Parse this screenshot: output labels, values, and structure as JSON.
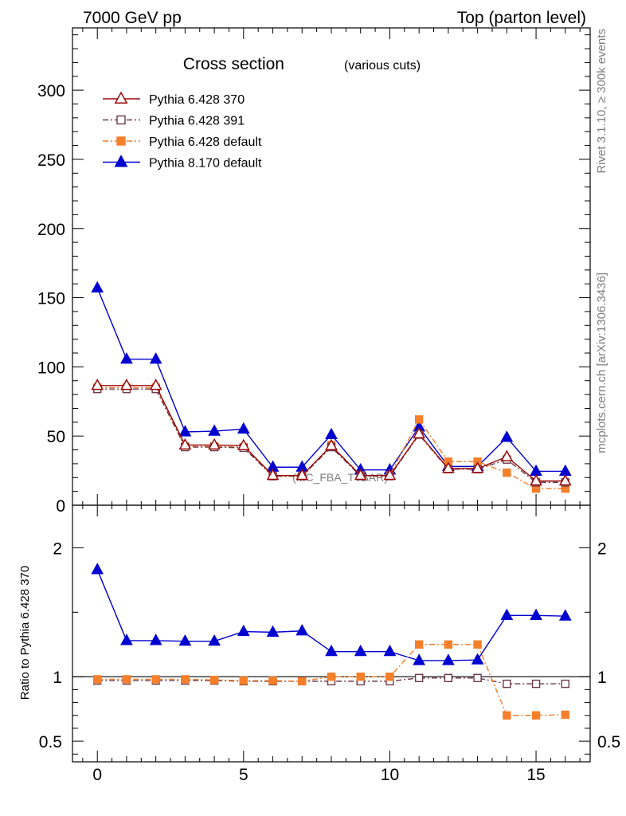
{
  "header": {
    "left": "7000 GeV pp",
    "right": "Top (parton level)"
  },
  "side": {
    "rivet": "Rivet 3.1.10, ≥ 300k events",
    "mcplots": "mcplots.cern.ch [arXiv:1306.3436]"
  },
  "chart_data": [
    {
      "panel": "main",
      "type": "line",
      "title": "Cross section",
      "subtitle": "(various cuts)",
      "watermark": "(MC_FBA_TTBAR)",
      "xlim": [
        -0.85,
        16.85
      ],
      "ylim": [
        0,
        345
      ],
      "yticks": [
        0,
        50,
        100,
        150,
        200,
        250,
        300
      ],
      "yticklabels": [
        "0",
        "50",
        "100",
        "150",
        "200",
        "250",
        "300"
      ],
      "legend_position": "top-left",
      "x": [
        0,
        1,
        2,
        3,
        4,
        5,
        6,
        7,
        8,
        9,
        10,
        11,
        12,
        13,
        14,
        15,
        16
      ],
      "series": [
        {
          "name": "Pythia 6.428 370",
          "color": "#9b0a0a",
          "marker": "open-triangle",
          "line": "solid",
          "values": [
            86.5,
            86.5,
            86.5,
            43.5,
            43.5,
            43,
            21.5,
            21.5,
            43,
            21.5,
            21.5,
            51.5,
            26.5,
            26.5,
            35,
            17.5,
            17.5
          ]
        },
        {
          "name": "Pythia 6.428 391",
          "color": "#6b3a4d",
          "marker": "open-square",
          "line": "dashdot",
          "values": [
            84,
            84,
            84,
            42,
            42,
            41.5,
            21,
            21,
            42,
            21,
            21,
            51,
            26,
            26,
            33,
            16.5,
            16.5
          ]
        },
        {
          "name": "Pythia 6.428 default",
          "color": "#f57f2a",
          "marker": "filled-square",
          "line": "dashdot",
          "values": [
            85,
            85,
            85,
            42.5,
            42.5,
            42,
            21,
            21,
            43.5,
            21.5,
            21.5,
            62,
            31.5,
            31.5,
            23.5,
            12,
            12
          ]
        },
        {
          "name": "Pythia 8.170 default",
          "color": "#0000d0",
          "marker": "filled-triangle",
          "line": "solid",
          "values": [
            157,
            105.5,
            105.5,
            53,
            53.5,
            55,
            27.5,
            27.5,
            51,
            25.5,
            25.5,
            56.5,
            28,
            28,
            49,
            24.5,
            24.5
          ]
        }
      ]
    },
    {
      "panel": "ratio",
      "type": "line",
      "ylabel": "Ratio to Pythia 6.428 370",
      "xlim": [
        -0.85,
        16.85
      ],
      "ylim": [
        0.34,
        2.33
      ],
      "reference": 1,
      "yticks": [
        0.5,
        1,
        2
      ],
      "yticklabels": [
        "0.5",
        "1",
        "2"
      ],
      "xticks": [
        0,
        5,
        10,
        15
      ],
      "xticklabels": [
        "0",
        "5",
        "10",
        "15"
      ],
      "x": [
        0,
        1,
        2,
        3,
        4,
        5,
        6,
        7,
        8,
        9,
        10,
        11,
        12,
        13,
        14,
        15,
        16
      ],
      "series": [
        {
          "name": "Pythia 6.428 391",
          "color": "#6b3a4d",
          "marker": "open-square",
          "line": "dashdot",
          "values": [
            0.97,
            0.97,
            0.97,
            0.97,
            0.97,
            0.965,
            0.965,
            0.965,
            0.965,
            0.965,
            0.965,
            0.99,
            0.99,
            0.99,
            0.945,
            0.945,
            0.945
          ]
        },
        {
          "name": "Pythia 6.428 default",
          "color": "#f57f2a",
          "marker": "filled-square",
          "line": "dashdot",
          "values": [
            0.98,
            0.98,
            0.98,
            0.98,
            0.975,
            0.97,
            0.97,
            0.965,
            1.0,
            1.0,
            1.0,
            1.25,
            1.25,
            1.25,
            0.7,
            0.7,
            0.705
          ]
        },
        {
          "name": "Pythia 8.170 default",
          "color": "#0000d0",
          "marker": "filled-triangle",
          "line": "solid",
          "values": [
            1.83,
            1.28,
            1.28,
            1.275,
            1.275,
            1.35,
            1.345,
            1.355,
            1.195,
            1.195,
            1.195,
            1.125,
            1.125,
            1.13,
            1.475,
            1.475,
            1.47
          ]
        }
      ]
    }
  ]
}
